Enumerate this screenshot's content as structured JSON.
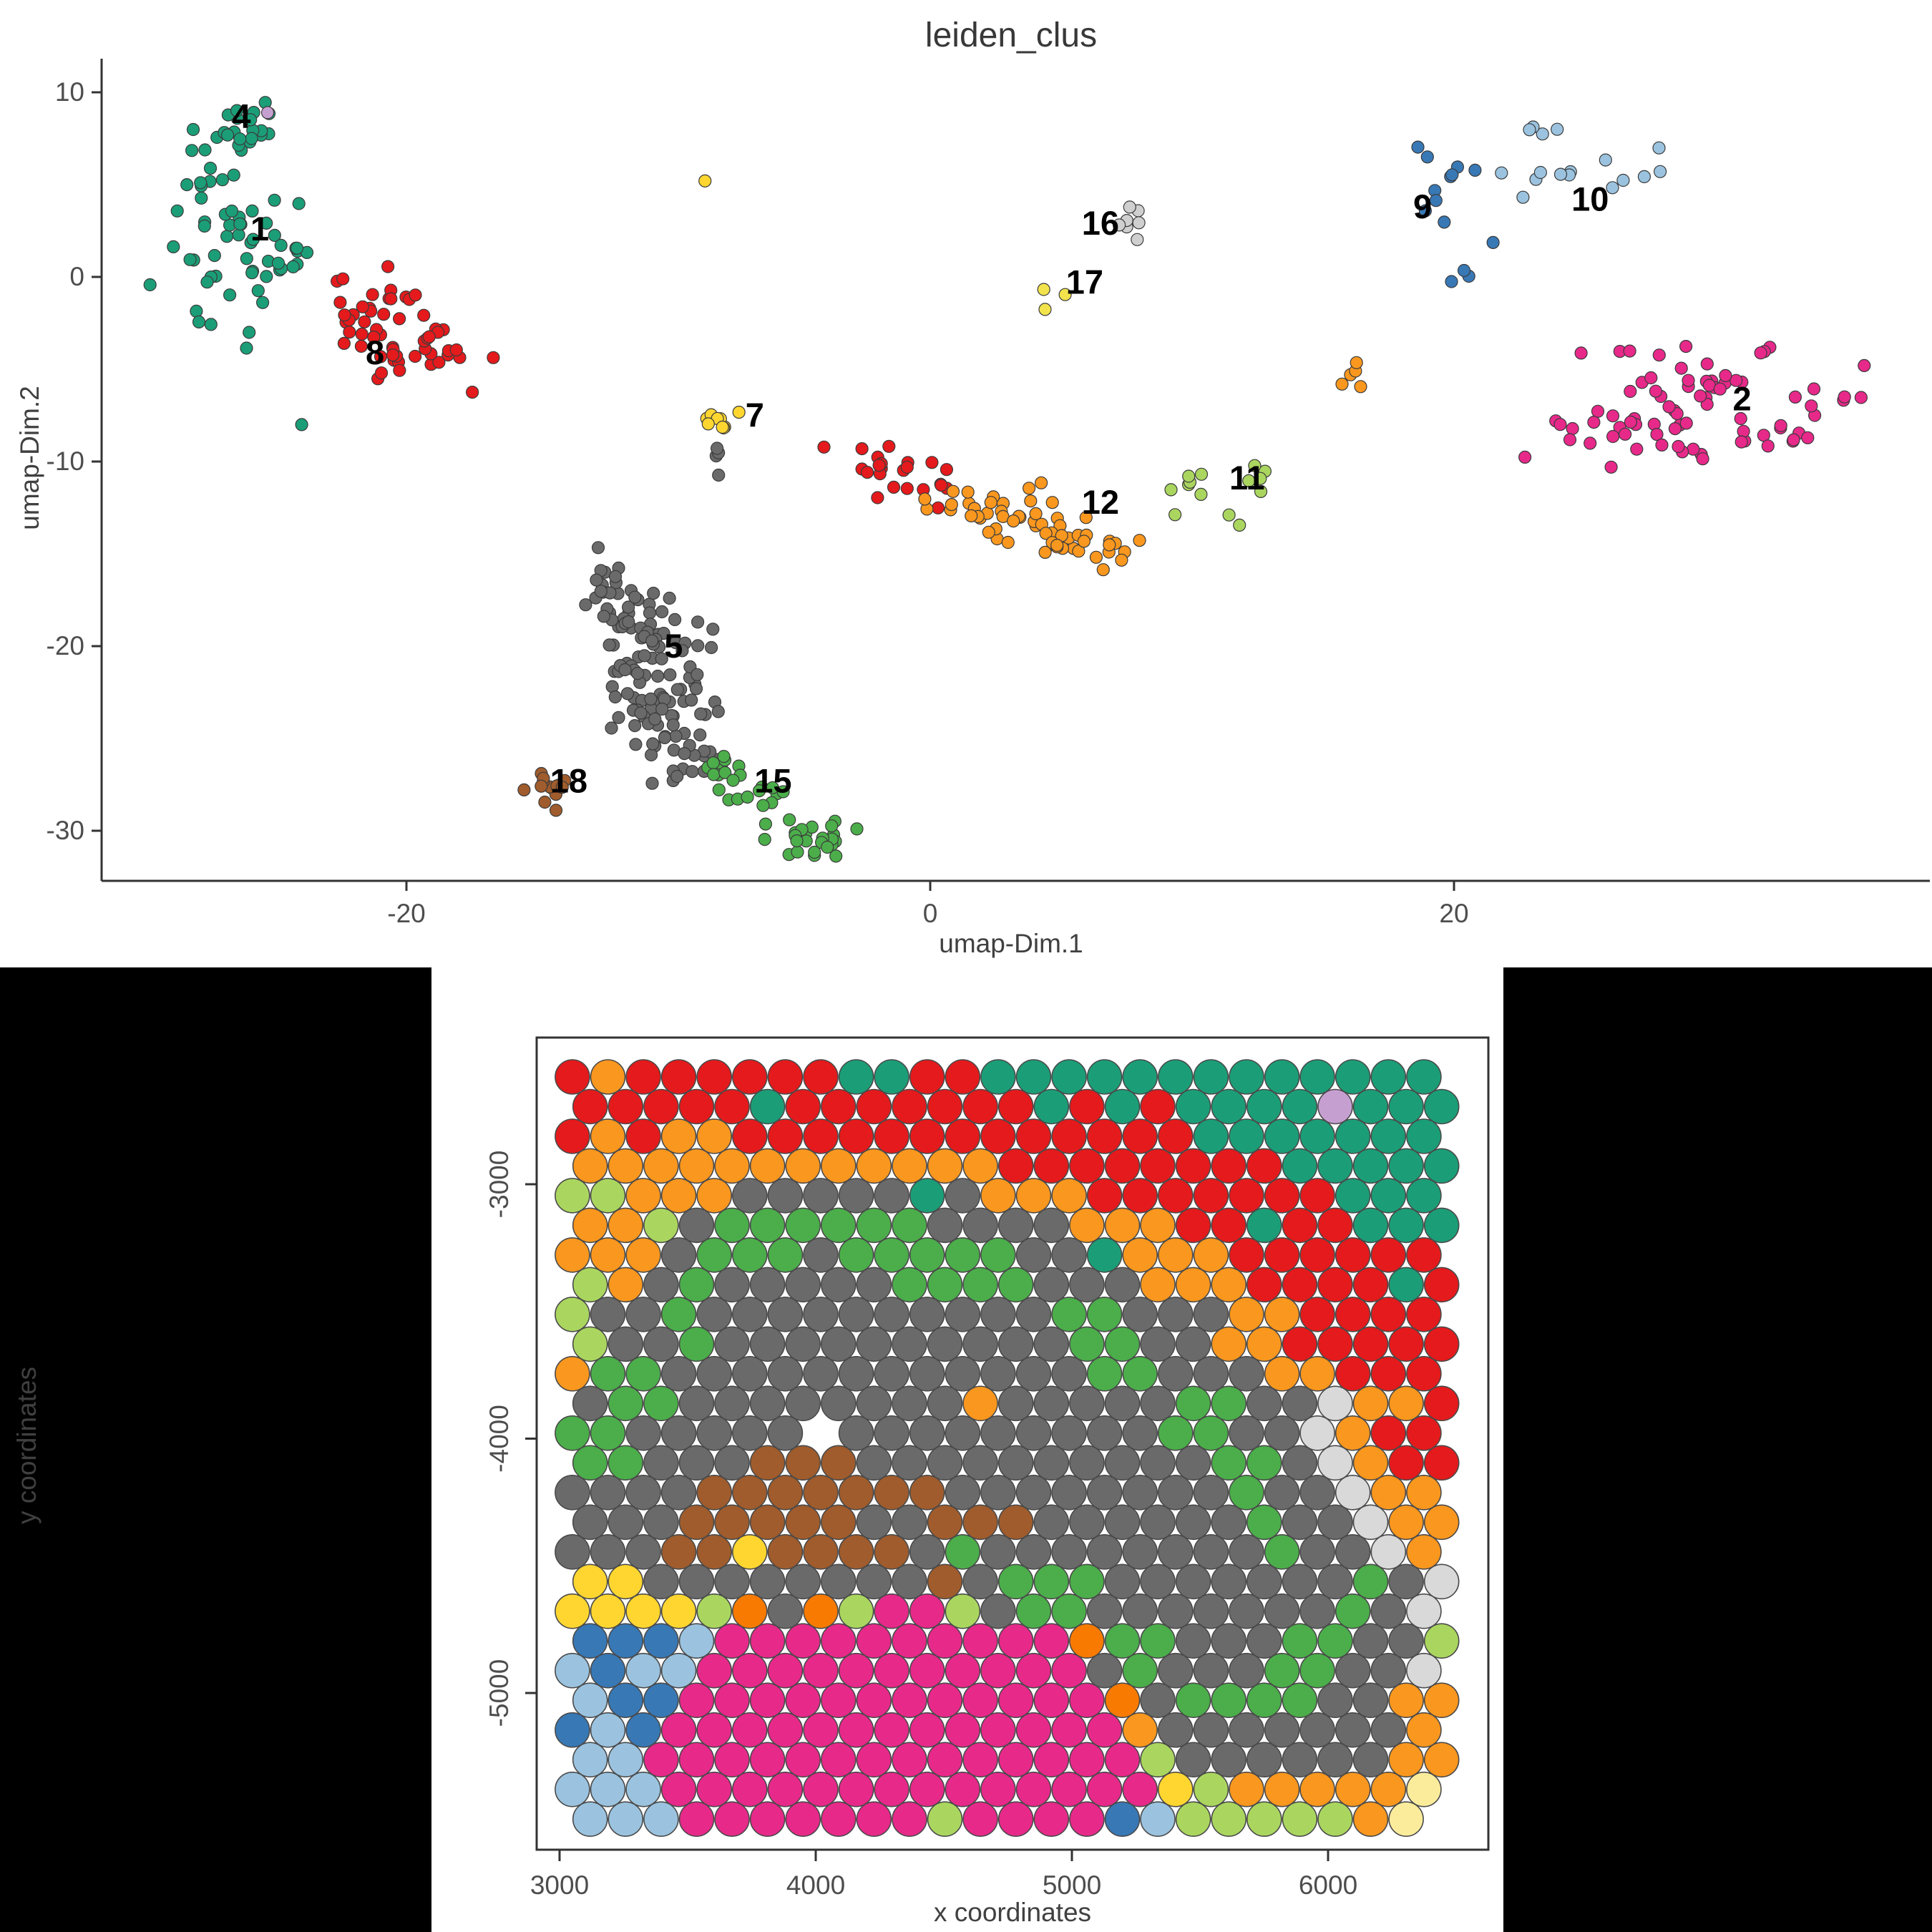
{
  "chart_data": [
    {
      "type": "scatter",
      "title": "leiden_clus",
      "xlabel": "umap-Dim.1",
      "ylabel": "umap-Dim.2",
      "x_ticks": [
        -20,
        0,
        20
      ],
      "y_ticks": [
        10,
        0,
        -10,
        -20,
        -30
      ],
      "xlim": [
        -31.6,
        38.2
      ],
      "ylim": [
        -32.8,
        11.8
      ],
      "grid": "off",
      "legend": "none",
      "clusters": [
        {
          "id": "4",
          "color": "#1B9E77",
          "blobs": [
            [
              -26.5,
              7.3,
              1.1,
              1.1,
              22
            ],
            [
              -27.6,
              5.0,
              0.8,
              1.0,
              8
            ]
          ]
        },
        {
          "id": "1",
          "color": "#1B9E77",
          "blobs": [
            [
              -26.2,
              1.5,
              1.4,
              1.6,
              40
            ],
            [
              -24.6,
              0.1,
              0.7,
              0.8,
              6
            ],
            [
              -26.9,
              -2.2,
              0.5,
              0.5,
              4
            ]
          ]
        },
        {
          "id": "8",
          "color": "#E41A1C",
          "blobs": [
            [
              -21.0,
              -2.1,
              1.3,
              0.9,
              30
            ],
            [
              -19.7,
              -4.1,
              1.2,
              0.8,
              26
            ]
          ]
        },
        {
          "id": "7",
          "color": "#FFD630",
          "blobs": [
            [
              -8.1,
              -7.7,
              0.33,
              0.33,
              9
            ]
          ]
        },
        {
          "id": "7b",
          "color": "#6A6A6A",
          "blobs": [
            [
              -8.2,
              -9.9,
              0.12,
              0.4,
              4
            ]
          ]
        },
        {
          "id": "16",
          "color": "#CFCFCF",
          "blobs": [
            [
              7.7,
              3.1,
              0.22,
              0.5,
              7
            ]
          ]
        },
        {
          "id": "17",
          "color": "#F2E34C",
          "blobs": [
            [
              4.7,
              -1.2,
              0.5,
              0.35,
              3
            ]
          ]
        },
        {
          "id": "9",
          "color": "#3878B5",
          "blobs": [
            [
              19.6,
              4.1,
              0.9,
              1.4,
              11
            ],
            [
              20.3,
              -0.2,
              0.35,
              0.4,
              3
            ]
          ]
        },
        {
          "id": "10",
          "color": "#9BC3DF",
          "blobs": [
            [
              25.5,
              5.4,
              2.2,
              1.2,
              14
            ],
            [
              23.2,
              7.6,
              0.6,
              0.5,
              3
            ]
          ]
        },
        {
          "id": "2",
          "color": "#E7298A",
          "blobs": [
            [
              29.5,
              -6.3,
              2.7,
              1.5,
              52
            ],
            [
              26.6,
              -8.3,
              1.8,
              0.8,
              20
            ],
            [
              31.8,
              -8.6,
              1.2,
              0.6,
              8
            ]
          ]
        },
        {
          "id": "12o",
          "color": "#F9971E",
          "blobs": [
            [
              16.2,
              -5.1,
              0.4,
              0.4,
              5
            ]
          ]
        },
        {
          "id": "11",
          "color": "#AAD65F",
          "blobs": [
            [
              10.3,
              -11.4,
              0.5,
              0.8,
              7
            ],
            [
              12.6,
              -10.9,
              0.3,
              0.6,
              5
            ],
            [
              11.6,
              -13.1,
              0.3,
              0.3,
              2
            ]
          ]
        },
        {
          "id": "8t",
          "color": "#E41A1C",
          "blobs": [
            [
              -2.1,
              -10.2,
              0.8,
              0.5,
              13
            ],
            [
              -0.3,
              -11.4,
              0.8,
              0.5,
              10
            ]
          ]
        },
        {
          "id": "12",
          "color": "#F9971E",
          "blobs": [
            [
              1.4,
              -12.3,
              1.0,
              0.5,
              15
            ],
            [
              3.3,
              -13.4,
              1.0,
              0.6,
              18
            ],
            [
              5.3,
              -14.3,
              0.9,
              0.6,
              15
            ],
            [
              6.8,
              -14.8,
              0.5,
              0.4,
              8
            ],
            [
              4.0,
              -11.8,
              0.3,
              0.3,
              3
            ]
          ]
        },
        {
          "id": "5",
          "color": "#6A6A6A",
          "blobs": [
            [
              -11.5,
              -18.4,
              0.7,
              1.4,
              30
            ],
            [
              -10.2,
              -20.4,
              1.0,
              1.2,
              34
            ],
            [
              -11.0,
              -22.5,
              0.8,
              1.0,
              25
            ],
            [
              -9.8,
              -24.4,
              0.9,
              1.0,
              25
            ],
            [
              -8.8,
              -26.0,
              0.7,
              0.7,
              14
            ],
            [
              -12.3,
              -17.3,
              0.4,
              0.8,
              8
            ]
          ]
        },
        {
          "id": "15",
          "color": "#4BAE4A",
          "blobs": [
            [
              -7.8,
              -26.6,
              0.5,
              0.6,
              10
            ],
            [
              -6.5,
              -28.1,
              0.7,
              0.5,
              12
            ],
            [
              -4.9,
              -30.1,
              0.8,
              0.5,
              18
            ],
            [
              -4.3,
              -30.7,
              0.4,
              0.3,
              8
            ]
          ]
        },
        {
          "id": "18",
          "color": "#A05C2C",
          "blobs": [
            [
              -14.5,
              -27.7,
              0.45,
              0.55,
              14
            ]
          ]
        }
      ],
      "singles": [
        {
          "x": -25.3,
          "y": 8.9,
          "color": "#C69FD1"
        },
        {
          "x": -8.6,
          "y": 5.2,
          "color": "#FFD630"
        },
        {
          "x": -24.0,
          "y": -8.0,
          "color": "#1B9E77"
        }
      ],
      "labels": [
        {
          "text": "4",
          "x": -26.3,
          "y": 8.7
        },
        {
          "text": "1",
          "x": -25.6,
          "y": 2.6
        },
        {
          "text": "8",
          "x": -21.2,
          "y": -4.1
        },
        {
          "text": "7",
          "x": -6.7,
          "y": -7.5
        },
        {
          "text": "16",
          "x": 6.5,
          "y": 2.9
        },
        {
          "text": "17",
          "x": 5.9,
          "y": -0.3
        },
        {
          "text": "9",
          "x": 18.8,
          "y": 3.8
        },
        {
          "text": "10",
          "x": 25.2,
          "y": 4.2
        },
        {
          "text": "2",
          "x": 31.0,
          "y": -6.6
        },
        {
          "text": "11",
          "x": 12.1,
          "y": -10.9
        },
        {
          "text": "12",
          "x": 6.5,
          "y": -12.2
        },
        {
          "text": "5",
          "x": -9.8,
          "y": -20.0
        },
        {
          "text": "18",
          "x": -13.8,
          "y": -27.3
        },
        {
          "text": "15",
          "x": -6.0,
          "y": -27.3
        }
      ]
    },
    {
      "type": "spatial-grid",
      "title": "",
      "xlabel": "x coordinates",
      "ylabel": "y coordinates",
      "x_ticks": [
        3000,
        4000,
        5000,
        6000
      ],
      "y_ticks": [
        -3000,
        -4000,
        -5000
      ],
      "xlim": [
        2911,
        6626
      ],
      "ylim": [
        -5616,
        -2423
      ],
      "grid": "off",
      "legend": "none",
      "spot_grid": {
        "x0": 3050,
        "y0": -2578,
        "dx": 138.5,
        "dy": 116.7,
        "row_offset": 69.3,
        "rows": [
          "RORRRRRRTTRRTTTTTTTTTTTTT",
          "RRRRRTRRRRRRRTRTRTTTTVTTT",
          "ROROORRRRRRRRRRRRRTTTTTTT",
          "OOOOOOOOOOOORRRRRRRRTTTTT",
          "LLOOOGGGGGTGOOORRRRRRRTTT",
          "OOLGNNNNNNGGGGOOORRTRRTTT",
          "OOOGNNNGNNNNNGGTOOORRRRRR",
          "LOGNGGGGGNNNNGGGOOORRRRTR",
          "LGGNGGGGGGGGGGNNGGGOORRRR",
          "LGGNGGGGGGGGGGNNGGOORRRRR",
          "ONNGGGGGGGGGGGGNNGGGOORRR",
          "GNNGGGGGGGGOGGGGGNNGGWOOR",
          "NNGGGGG.GGGGGGGGGNNGGWORR",
          "NNGGGAAAGGGGGGGGGGNNGWORR",
          "GGGGAAAAAAAGGGGGGGGNGGWOO",
          "GGGAAAAAGGAAAGGGGGGNGGWOO",
          "GGGAAYAAAAGNGGGGGGGGNGGWO",
          "YYGGGGGGGGAGNNNGGGGGGGNGW",
          "YYYYLDGDLMMLGNNGGGGGGGNGW",
          "BBBbMMMMMMMMMMDNNGGGNNGGL",
          "bBbbMMMMMMMMMMMGNGGGNNGGW",
          "bBBMMMMMMMMMMMMDGNNNNGGOO",
          "BbBMMMMMMMMMMMMMOGGGGGGGO",
          "bbMMMMMMMMMMMMMMLGGGGGGOO",
          "bbbMMMMMMMMMMMMMMYLOOOOOP",
          "bbbMMMMMMMLMMMMBbLLLLLOP"
        ],
        "palette": {
          "R": "#E41A1C",
          "O": "#F9971E",
          "D": "#F87A00",
          "T": "#1B9E77",
          "N": "#4BAE4A",
          "L": "#AAD65F",
          "G": "#6A6A6A",
          "Y": "#FFD630",
          "P": "#FBEC9C",
          "M": "#E7298A",
          "B": "#3878B5",
          "b": "#9BC3DF",
          "W": "#D9D9D9",
          "A": "#A05C2C",
          "V": "#C69FD1"
        }
      }
    }
  ],
  "style": {
    "axis_color": "#333333",
    "tick_label_color": "#4d4d4d",
    "point_stroke": "#3b3b3b",
    "spot_stroke": "#4a4a4a",
    "label_color": "#000000"
  }
}
